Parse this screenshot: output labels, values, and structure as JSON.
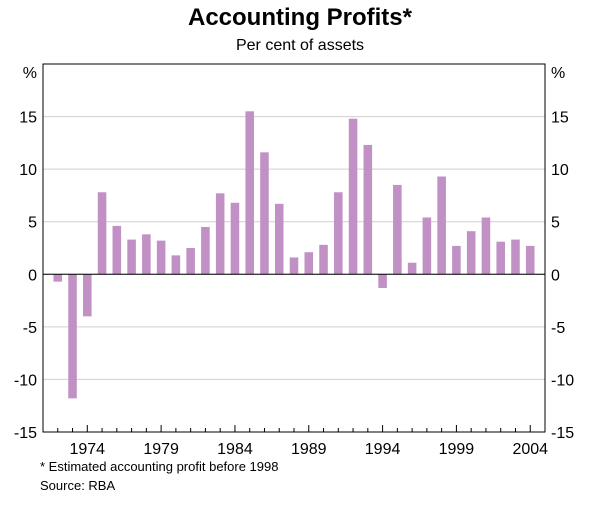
{
  "chart_data": {
    "type": "bar",
    "title": "Accounting Profits*",
    "subtitle": "Per cent of assets",
    "ylabel_left": "%",
    "ylabel_right": "%",
    "ylim": [
      -15,
      20
    ],
    "yticks": [
      -15,
      -10,
      -5,
      0,
      5,
      10,
      15
    ],
    "xlim": [
      1971,
      2005
    ],
    "xticks": [
      1974,
      1979,
      1984,
      1989,
      1994,
      1999,
      2004
    ],
    "series": [
      {
        "name": "Accounting profits",
        "color": "#c190c5",
        "x": [
          1972,
          1973,
          1974,
          1975,
          1976,
          1977,
          1978,
          1979,
          1980,
          1981,
          1982,
          1983,
          1984,
          1985,
          1986,
          1987,
          1988,
          1989,
          1990,
          1991,
          1992,
          1993,
          1994,
          1995,
          1996,
          1997,
          1998,
          1999,
          2000,
          2001,
          2002,
          2003,
          2004
        ],
        "values": [
          -0.7,
          -11.8,
          -4.0,
          7.8,
          4.6,
          3.3,
          3.8,
          3.2,
          1.8,
          2.5,
          4.5,
          7.7,
          6.8,
          15.5,
          11.6,
          6.7,
          1.6,
          2.1,
          2.8,
          7.8,
          14.8,
          12.3,
          -1.3,
          8.5,
          1.1,
          5.4,
          9.3,
          2.7,
          4.1,
          5.4,
          3.1,
          3.3,
          2.7
        ]
      }
    ]
  },
  "footnote": "* Estimated accounting profit before 1998",
  "source": "Source: RBA"
}
